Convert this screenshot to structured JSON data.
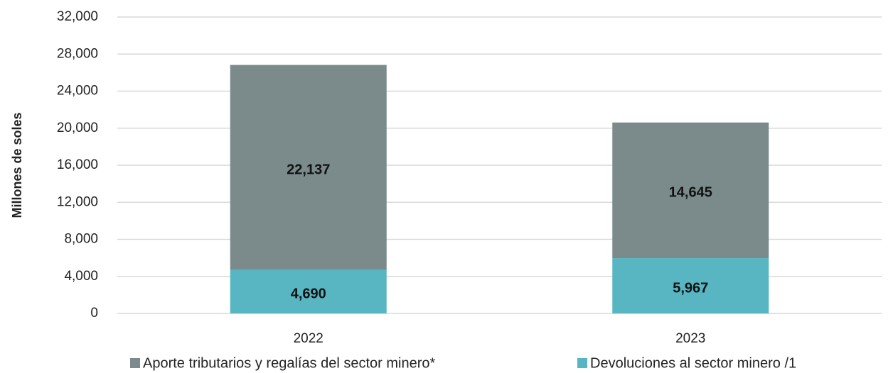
{
  "chart_data": {
    "type": "stacked_bar",
    "ylabel": "Millones de soles",
    "categories": [
      "2022",
      "2023"
    ],
    "series": [
      {
        "name": "Aporte tributarios y regalías del sector minero*",
        "color": "#7b8b8c",
        "values": [
          22137,
          14645
        ],
        "value_labels": [
          "22,137",
          "14,645"
        ]
      },
      {
        "name": "Devoluciones al sector minero /1",
        "color": "#58b5c2",
        "values": [
          4690,
          5967
        ],
        "value_labels": [
          "4,690",
          "5,967"
        ]
      }
    ],
    "ylim": [
      0,
      32000
    ],
    "yticks": [
      0,
      {
        "value": 4000,
        "label": "4,000"
      },
      {
        "value": 8000,
        "label": "8,000"
      },
      {
        "value": 12000,
        "label": "12,000"
      },
      {
        "value": 16000,
        "label": "16,000"
      },
      {
        "value": 20000,
        "label": "20,000"
      },
      {
        "value": 24000,
        "label": "24,000"
      },
      {
        "value": 28000,
        "label": "28,000"
      },
      {
        "value": 32000,
        "label": "32,000"
      }
    ],
    "grid": true
  }
}
